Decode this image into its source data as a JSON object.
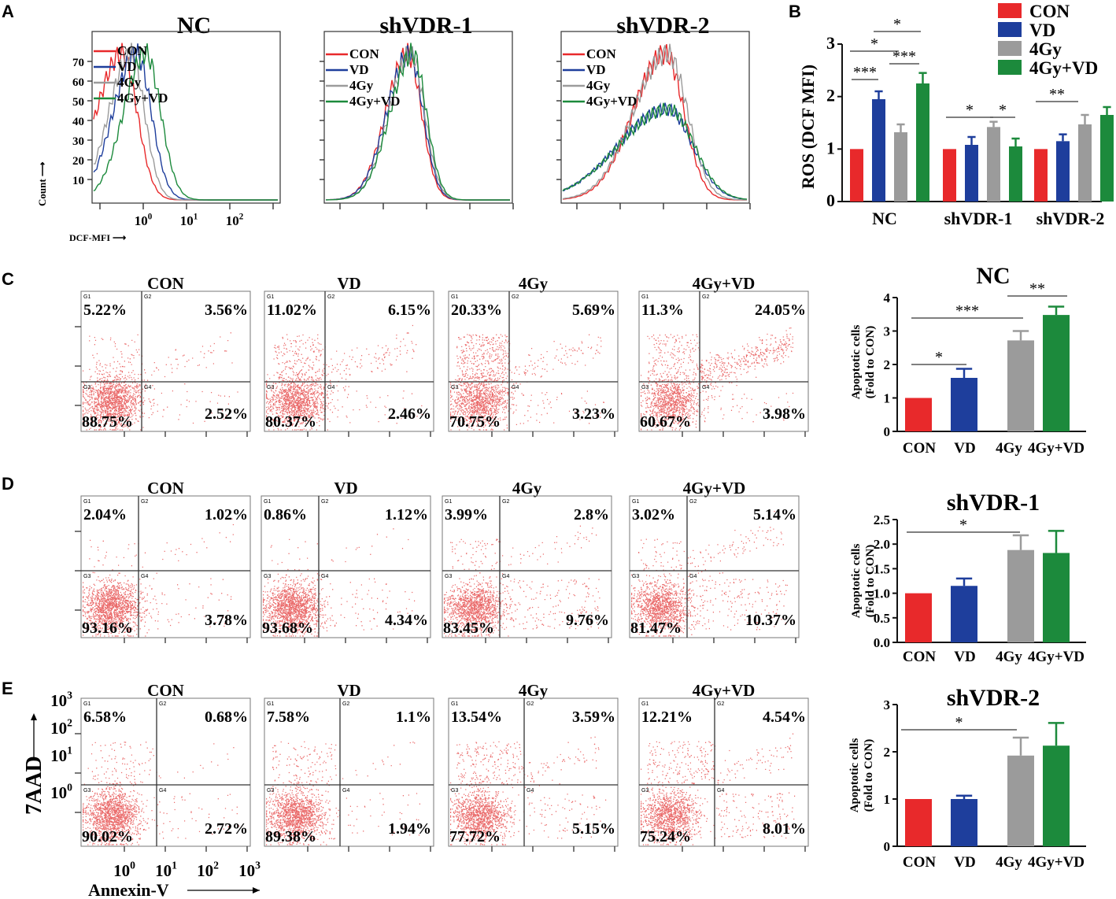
{
  "panel_labels": {
    "A": "A",
    "B": "B",
    "C": "C",
    "D": "D",
    "E": "E"
  },
  "colors": {
    "con": "#e8292b",
    "vd": "#1e3e9c",
    "gy": "#9b9b9b",
    "gyvd": "#1c8a3c",
    "dot": "#e33a3a"
  },
  "legend_labels": [
    "CON",
    "VD",
    "4Gy",
    "4Gy+VD"
  ],
  "histograms": {
    "axis": {
      "count_label": "Count",
      "x_label": "DCF-MFI",
      "y_ticks": [
        "70",
        "60",
        "50",
        "40",
        "30",
        "20",
        "10"
      ],
      "x_ticks": [
        {
          "base": "10",
          "exp": "0"
        },
        {
          "base": "10",
          "exp": "1"
        },
        {
          "base": "10",
          "exp": "2"
        }
      ]
    },
    "titles": [
      "NC",
      "shVDR-1",
      "shVDR-2"
    ]
  },
  "chart_data": [
    {
      "type": "bar",
      "panel": "B",
      "title": "",
      "ylabel": "ROS (DCF MFI)",
      "ylim": [
        0,
        3
      ],
      "yticks": [
        "0",
        "1",
        "2",
        "3"
      ],
      "categories": [
        "NC",
        "shVDR-1",
        "shVDR-2"
      ],
      "series": [
        {
          "name": "CON",
          "values": [
            1.0,
            1.0,
            1.0
          ],
          "errors": [
            0,
            0,
            0
          ]
        },
        {
          "name": "VD",
          "values": [
            1.95,
            1.08,
            1.15
          ],
          "errors": [
            0.15,
            0.15,
            0.13
          ]
        },
        {
          "name": "4Gy",
          "values": [
            1.32,
            1.42,
            1.47
          ],
          "errors": [
            0.15,
            0.1,
            0.18
          ]
        },
        {
          "name": "4Gy+VD",
          "values": [
            2.25,
            1.05,
            1.65
          ],
          "errors": [
            0.2,
            0.15,
            0.15
          ]
        }
      ],
      "significance": [
        "***",
        "*",
        "*",
        "***",
        "*",
        "*",
        "**"
      ]
    },
    {
      "type": "bar",
      "panel": "C",
      "title": "NC",
      "ylabel": "Apoptotic cells",
      "ylabel2": "(Fold to CON)",
      "ylim": [
        0,
        4
      ],
      "yticks": [
        "0",
        "1",
        "2",
        "3",
        "4"
      ],
      "categories": [
        "CON",
        "VD",
        "4Gy",
        "4Gy+VD"
      ],
      "values": [
        1.0,
        1.6,
        2.72,
        3.48
      ],
      "errors": [
        0,
        0.27,
        0.28,
        0.25
      ],
      "significance": [
        "*",
        "***",
        "**"
      ]
    },
    {
      "type": "bar",
      "panel": "D",
      "title": "shVDR-1",
      "ylabel": "Apoptotic cells",
      "ylabel2": "(Fold to CON)",
      "ylim": [
        0,
        2.5
      ],
      "yticks": [
        "0.0",
        "0.5",
        "1.0",
        "1.5",
        "2.0",
        "2.5"
      ],
      "categories": [
        "CON",
        "VD",
        "4Gy",
        "4Gy+VD"
      ],
      "values": [
        1.0,
        1.15,
        1.88,
        1.82
      ],
      "errors": [
        0,
        0.15,
        0.3,
        0.45
      ],
      "significance": [
        "*"
      ]
    },
    {
      "type": "bar",
      "panel": "E",
      "title": "shVDR-2",
      "ylabel": "Apoptotic cells",
      "ylabel2": "(Fold to CON)",
      "ylim": [
        0,
        3
      ],
      "yticks": [
        "0",
        "1",
        "2",
        "3"
      ],
      "categories": [
        "CON",
        "VD",
        "4Gy",
        "4Gy+VD"
      ],
      "values": [
        1.0,
        1.0,
        1.92,
        2.13
      ],
      "errors": [
        0,
        0.07,
        0.38,
        0.48
      ],
      "significance": [
        "*"
      ]
    }
  ],
  "flow": {
    "gates": [
      "G1",
      "G2",
      "G3",
      "G4"
    ],
    "axis_y_label": "7AAD",
    "axis_x_label": "Annexin-V",
    "y_ticks": [
      {
        "base": "10",
        "exp": "3"
      },
      {
        "base": "10",
        "exp": "2"
      },
      {
        "base": "10",
        "exp": "1"
      },
      {
        "base": "10",
        "exp": "0"
      }
    ],
    "x_ticks": [
      {
        "base": "10",
        "exp": "0"
      },
      {
        "base": "10",
        "exp": "1"
      },
      {
        "base": "10",
        "exp": "2"
      },
      {
        "base": "10",
        "exp": "3"
      }
    ],
    "rows": [
      {
        "row": "C",
        "plots": [
          {
            "title": "CON",
            "ul": "5.22%",
            "ur": "3.56%",
            "ll": "88.75%",
            "lr": "2.52%"
          },
          {
            "title": "VD",
            "ul": "11.02%",
            "ur": "6.15%",
            "ll": "80.37%",
            "lr": "2.46%"
          },
          {
            "title": "4Gy",
            "ul": "20.33%",
            "ur": "5.69%",
            "ll": "70.75%",
            "lr": "3.23%"
          },
          {
            "title": "4Gy+VD",
            "ul": "11.3%",
            "ur": "24.05%",
            "ll": "60.67%",
            "lr": "3.98%"
          }
        ]
      },
      {
        "row": "D",
        "plots": [
          {
            "title": "CON",
            "ul": "2.04%",
            "ur": "1.02%",
            "ll": "93.16%",
            "lr": "3.78%"
          },
          {
            "title": "VD",
            "ul": "0.86%",
            "ur": "1.12%",
            "ll": "93.68%",
            "lr": "4.34%"
          },
          {
            "title": "4Gy",
            "ul": "3.99%",
            "ur": "2.8%",
            "ll": "83.45%",
            "lr": "9.76%"
          },
          {
            "title": "4Gy+VD",
            "ul": "3.02%",
            "ur": "5.14%",
            "ll": "81.47%",
            "lr": "10.37%"
          }
        ]
      },
      {
        "row": "E",
        "plots": [
          {
            "title": "CON",
            "ul": "6.58%",
            "ur": "0.68%",
            "ll": "90.02%",
            "lr": "2.72%"
          },
          {
            "title": "VD",
            "ul": "7.58%",
            "ur": "1.1%",
            "ll": "89.38%",
            "lr": "1.94%"
          },
          {
            "title": "4Gy",
            "ul": "13.54%",
            "ur": "3.59%",
            "ll": "77.72%",
            "lr": "5.15%"
          },
          {
            "title": "4Gy+VD",
            "ul": "12.21%",
            "ur": "4.54%",
            "ll": "75.24%",
            "lr": "8.01%"
          }
        ]
      }
    ]
  }
}
